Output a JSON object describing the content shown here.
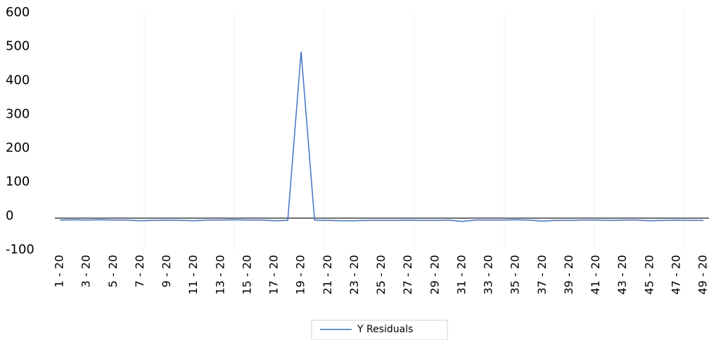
{
  "chart_data": {
    "type": "line",
    "categories": [
      "1 - 20",
      null,
      "3 - 20",
      null,
      "5 - 20",
      null,
      "7 - 20",
      null,
      "9 - 20",
      null,
      "11 - 20",
      null,
      "13 - 20",
      null,
      "15 - 20",
      null,
      "17 - 20",
      null,
      "19 - 20",
      null,
      "21 - 20",
      null,
      "23 - 20",
      null,
      "25 - 20",
      null,
      "27 - 20",
      null,
      "29 - 20",
      null,
      "31 - 20",
      null,
      "33 - 20",
      null,
      "35 - 20",
      null,
      "37 - 20",
      null,
      "39 - 20",
      null,
      "41 - 20",
      null,
      "43 - 20",
      null,
      "45 - 20",
      null,
      "47 - 20",
      null,
      "49 - 20"
    ],
    "series": [
      {
        "name": "Y Residuals",
        "color": "#4472c4",
        "values": [
          -12,
          -11,
          -12,
          -11,
          -12,
          -12,
          -14,
          -13,
          -12,
          -13,
          -14,
          -12,
          -12,
          -11,
          -12,
          -12,
          -14,
          -13,
          485,
          -12,
          -13,
          -14,
          -14,
          -13,
          -13,
          -13,
          -12,
          -13,
          -13,
          -12,
          -16,
          -12,
          -12,
          -12,
          -11,
          -12,
          -15,
          -13,
          -13,
          -12,
          -12,
          -13,
          -12,
          -12,
          -14,
          -13,
          -12,
          -13,
          -13
        ]
      }
    ],
    "ylim": [
      -100,
      600
    ],
    "yticks": [
      -100,
      0,
      100,
      200,
      300,
      400,
      500,
      600
    ],
    "grid": false
  }
}
